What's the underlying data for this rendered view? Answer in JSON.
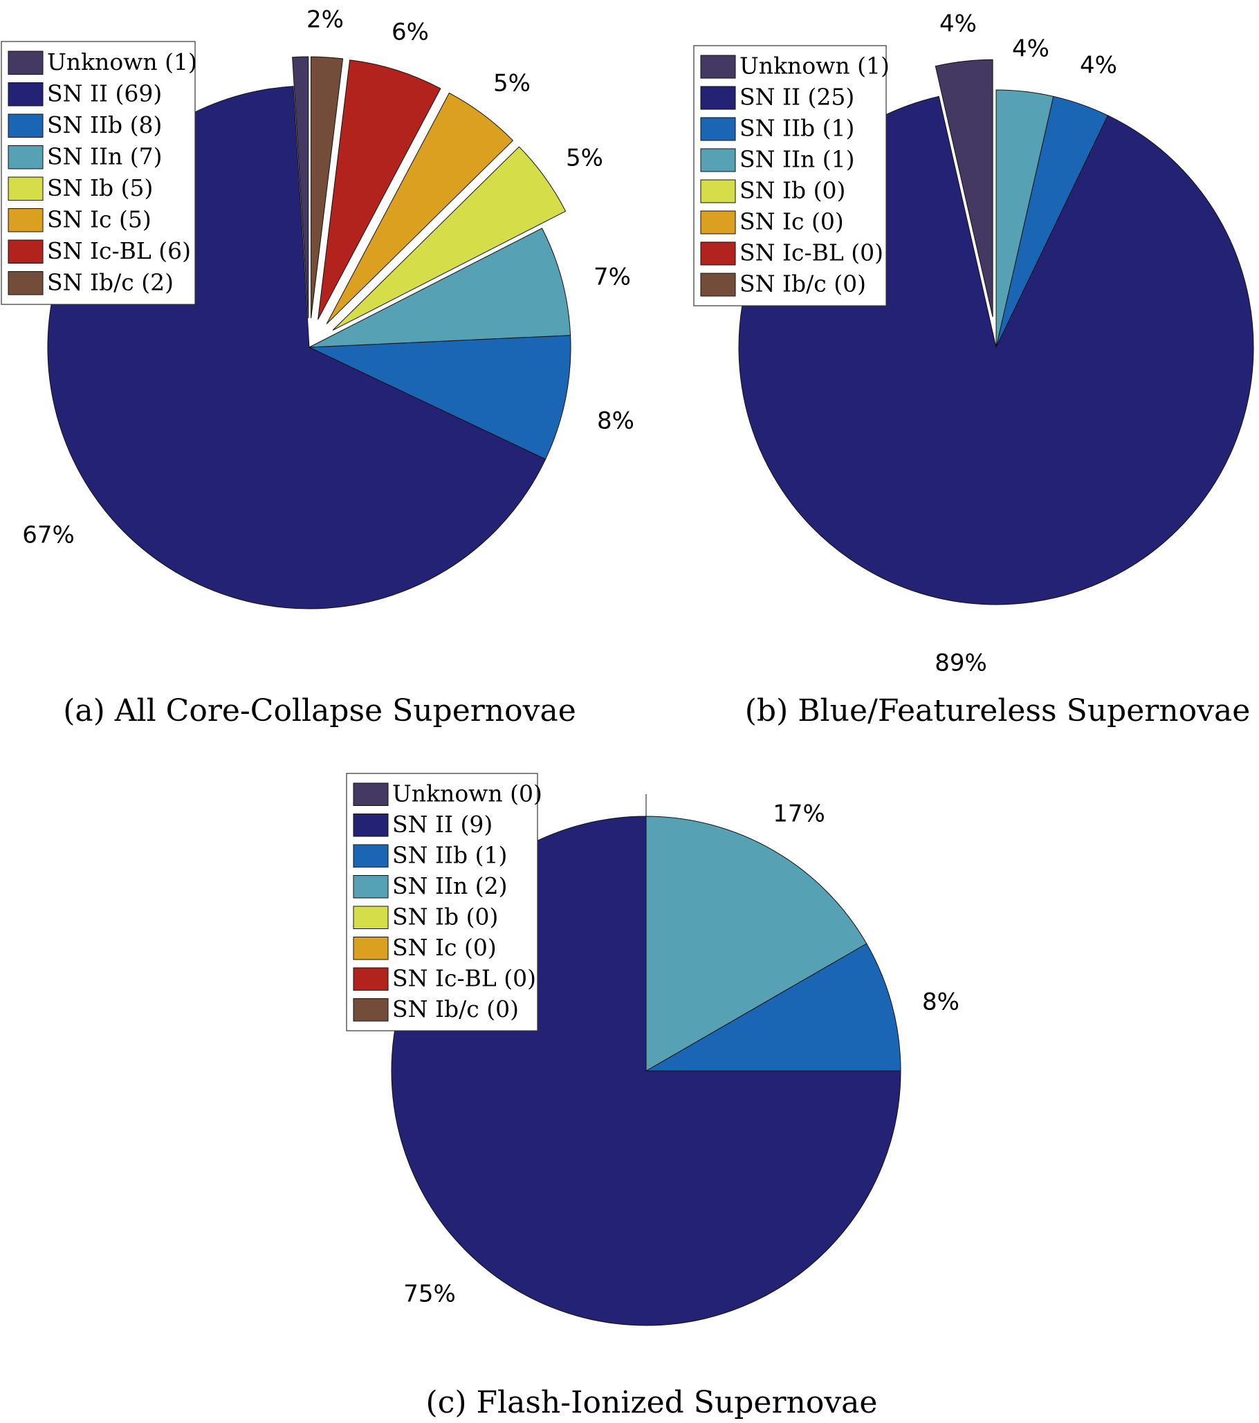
{
  "colors": {
    "Unknown": "#433963",
    "SN II": "#232274",
    "SN IIb": "#1a66b5",
    "SN IIn": "#56a2b4",
    "SN Ib": "#d5de49",
    "SN Ic": "#dba01f",
    "SN Ic-BL": "#b3231e",
    "SN Ib/c": "#744d3a"
  },
  "chart_data": [
    {
      "type": "pie",
      "title": "(a) All Core-Collapse Supernovae",
      "legend_position": "top-left",
      "slices": [
        {
          "category": "Unknown",
          "legend": "Unknown (1)",
          "count": 1,
          "percent_label": "",
          "exploded": true
        },
        {
          "category": "SN II",
          "legend": "SN II (69)",
          "count": 69,
          "percent_label": "67%",
          "exploded": false
        },
        {
          "category": "SN IIb",
          "legend": "SN IIb (8)",
          "count": 8,
          "percent_label": "8%",
          "exploded": false
        },
        {
          "category": "SN IIn",
          "legend": "SN IIn (7)",
          "count": 7,
          "percent_label": "7%",
          "exploded": false
        },
        {
          "category": "SN Ib",
          "legend": "SN Ib (5)",
          "count": 5,
          "percent_label": "5%",
          "exploded": true
        },
        {
          "category": "SN Ic",
          "legend": "SN Ic (5)",
          "count": 5,
          "percent_label": "5%",
          "exploded": true
        },
        {
          "category": "SN Ic-BL",
          "legend": "SN Ic-BL (6)",
          "count": 6,
          "percent_label": "6%",
          "exploded": true
        },
        {
          "category": "SN Ib/c",
          "legend": "SN Ib/c (2)",
          "count": 2,
          "percent_label": "2%",
          "exploded": true
        }
      ]
    },
    {
      "type": "pie",
      "title": "(b) Blue/Featureless Supernovae",
      "legend_position": "top-left",
      "slices": [
        {
          "category": "Unknown",
          "legend": "Unknown (1)",
          "count": 1,
          "percent_label": "4%",
          "exploded": true
        },
        {
          "category": "SN II",
          "legend": "SN II (25)",
          "count": 25,
          "percent_label": "89%",
          "exploded": false
        },
        {
          "category": "SN IIb",
          "legend": "SN IIb (1)",
          "count": 1,
          "percent_label": "4%",
          "exploded": false
        },
        {
          "category": "SN IIn",
          "legend": "SN IIn (1)",
          "count": 1,
          "percent_label": "4%",
          "exploded": false
        },
        {
          "category": "SN Ib",
          "legend": "SN Ib (0)",
          "count": 0,
          "percent_label": "",
          "exploded": false
        },
        {
          "category": "SN Ic",
          "legend": "SN Ic (0)",
          "count": 0,
          "percent_label": "",
          "exploded": false
        },
        {
          "category": "SN Ic-BL",
          "legend": "SN Ic-BL (0)",
          "count": 0,
          "percent_label": "",
          "exploded": false
        },
        {
          "category": "SN Ib/c",
          "legend": "SN Ib/c (0)",
          "count": 0,
          "percent_label": "",
          "exploded": false
        }
      ]
    },
    {
      "type": "pie",
      "title": "(c) Flash-Ionized Supernovae",
      "legend_position": "top-left",
      "slices": [
        {
          "category": "Unknown",
          "legend": "Unknown (0)",
          "count": 0,
          "percent_label": "",
          "exploded": false
        },
        {
          "category": "SN II",
          "legend": "SN II (9)",
          "count": 9,
          "percent_label": "75%",
          "exploded": false
        },
        {
          "category": "SN IIb",
          "legend": "SN IIb (1)",
          "count": 1,
          "percent_label": "8%",
          "exploded": false
        },
        {
          "category": "SN IIn",
          "legend": "SN IIn (2)",
          "count": 2,
          "percent_label": "17%",
          "exploded": false
        },
        {
          "category": "SN Ib",
          "legend": "SN Ib (0)",
          "count": 0,
          "percent_label": "",
          "exploded": false
        },
        {
          "category": "SN Ic",
          "legend": "SN Ic (0)",
          "count": 0,
          "percent_label": "",
          "exploded": false
        },
        {
          "category": "SN Ic-BL",
          "legend": "SN Ic-BL (0)",
          "count": 0,
          "percent_label": "",
          "exploded": false
        },
        {
          "category": "SN Ib/c",
          "legend": "SN Ib/c (0)",
          "count": 0,
          "percent_label": "",
          "exploded": false
        }
      ]
    }
  ]
}
